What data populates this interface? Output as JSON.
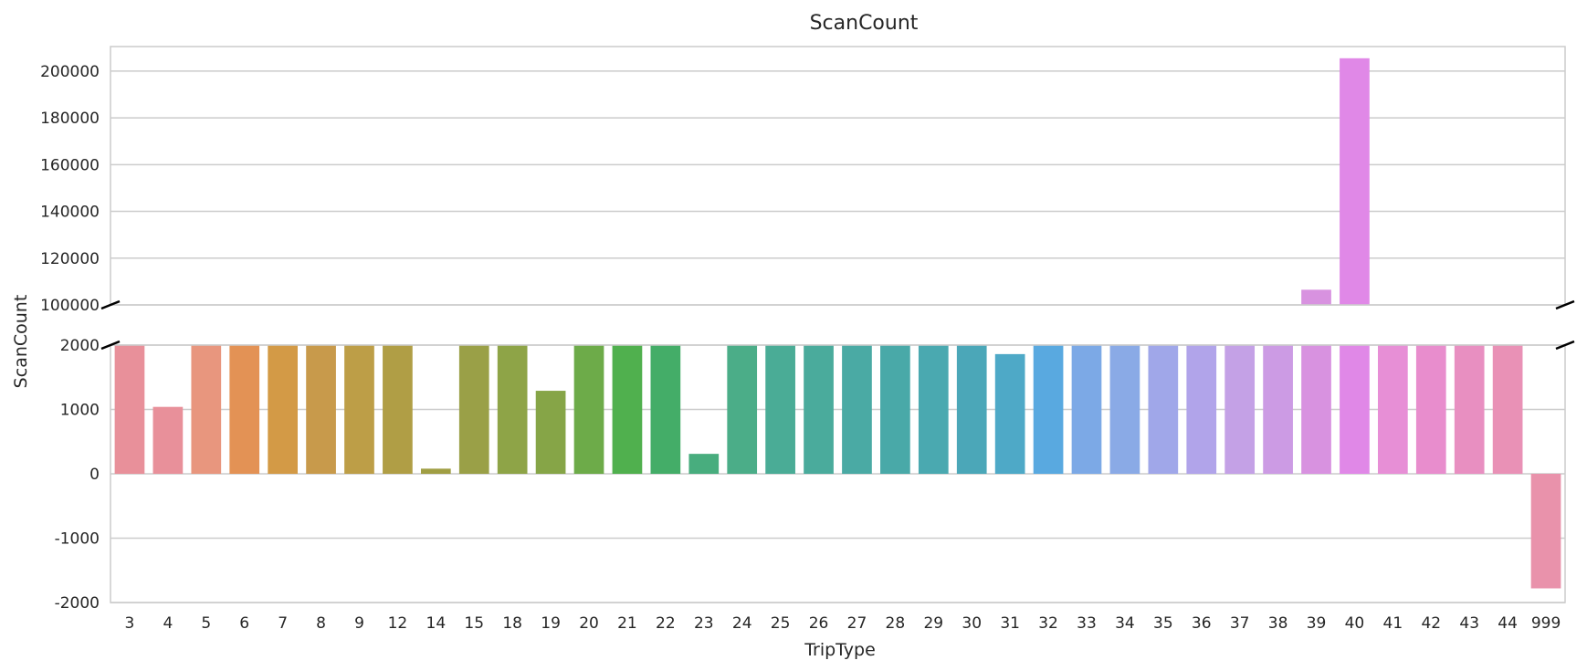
{
  "chart_data": {
    "type": "bar",
    "title": "ScanCount",
    "xlabel": "TripType",
    "ylabel": "ScanCount",
    "broken_axis": true,
    "grid": true,
    "legend": "none",
    "categories": [
      "3",
      "4",
      "5",
      "6",
      "7",
      "8",
      "9",
      "12",
      "14",
      "15",
      "18",
      "19",
      "20",
      "21",
      "22",
      "23",
      "24",
      "25",
      "26",
      "27",
      "28",
      "29",
      "30",
      "31",
      "32",
      "33",
      "34",
      "35",
      "36",
      "37",
      "38",
      "39",
      "40",
      "41",
      "42",
      "43",
      "44",
      "999"
    ],
    "values": [
      2000,
      1040,
      2000,
      2000,
      2000,
      2000,
      2000,
      2000,
      80,
      2000,
      2000,
      1290,
      2000,
      2000,
      2000,
      310,
      2000,
      2000,
      2000,
      2000,
      2000,
      2000,
      2000,
      1860,
      2000,
      2000,
      2000,
      2000,
      2000,
      2000,
      2000,
      106500,
      205500,
      2000,
      2000,
      2000,
      2000,
      -1780
    ],
    "upper_panel": {
      "ylim": [
        100000,
        210500
      ],
      "yticks": [
        100000,
        120000,
        140000,
        160000,
        180000,
        200000
      ]
    },
    "lower_panel": {
      "ylim": [
        -2000,
        2000
      ],
      "yticks": [
        -2000,
        -1000,
        0,
        1000,
        2000
      ]
    },
    "colors": [
      "#e8909a",
      "#e8909a",
      "#e8967e",
      "#e39255",
      "#d39a46",
      "#c89a4b",
      "#bd9e47",
      "#b09e45",
      "#a09e43",
      "#9aa047",
      "#8ea447",
      "#86a547",
      "#6dab49",
      "#50b04e",
      "#44ad68",
      "#48ad7e",
      "#4bad88",
      "#4aac96",
      "#4aab9c",
      "#4aaaa4",
      "#49a9a8",
      "#4aa9b0",
      "#4ba7b8",
      "#4ea9c7",
      "#59a9e0",
      "#7ca9e6",
      "#8aaae6",
      "#a0a7e9",
      "#b1a4ea",
      "#c4a1e6",
      "#cc9be4",
      "#d892e0",
      "#e088e7",
      "#e78fd6",
      "#e88dcd",
      "#e88fc1",
      "#e991b6",
      "#e992ab"
    ]
  }
}
